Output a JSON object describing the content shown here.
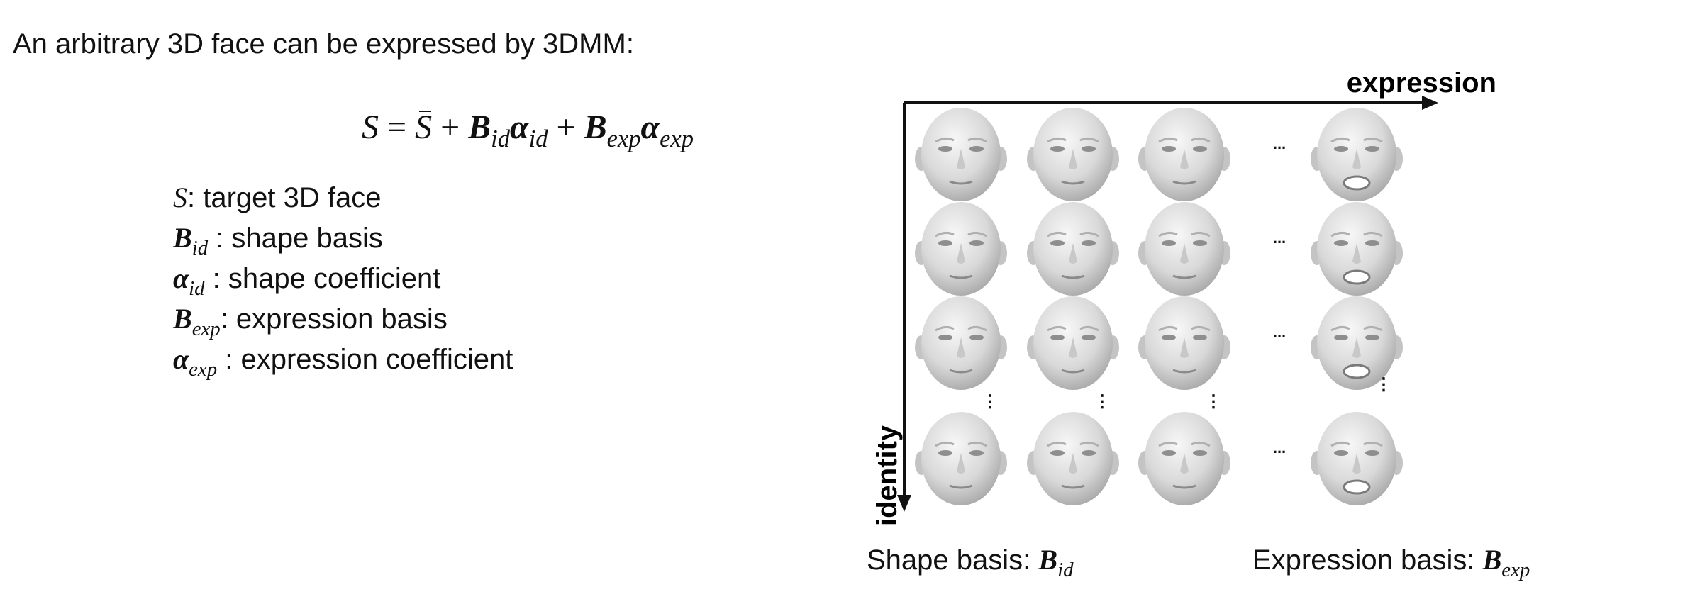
{
  "intro": "An arbitrary 3D face can be expressed by 3DMM:",
  "formula": {
    "lhs": "S",
    "eq": "=",
    "mean": "S",
    "plus": "+",
    "b_id": "B",
    "b_id_sub": "id",
    "a_id": "α",
    "a_id_sub": "id",
    "b_exp": "B",
    "b_exp_sub": "exp",
    "a_exp": "α",
    "a_exp_sub": "exp"
  },
  "legend": [
    {
      "symbol": "S",
      "sub": "",
      "bold": false,
      "desc": ": target 3D face"
    },
    {
      "symbol": "B",
      "sub": "id",
      "bold": true,
      "desc": " : shape basis"
    },
    {
      "symbol": "α",
      "sub": "id",
      "bold": true,
      "desc": " : shape coefficient"
    },
    {
      "symbol": "B",
      "sub": "exp",
      "bold": true,
      "desc": ": expression basis"
    },
    {
      "symbol": "α",
      "sub": "exp",
      "bold": true,
      "desc": " : expression coefficient"
    }
  ],
  "diagram": {
    "axis_x_label": "expression",
    "axis_y_label": "identity",
    "ellipsis_h": "...",
    "ellipsis_v": "⋮",
    "rows": 4,
    "cols": 4
  },
  "bottom_labels": {
    "shape": {
      "text": "Shape basis: ",
      "symbol": "B",
      "sub": "id"
    },
    "expression": {
      "text": "Expression basis: ",
      "symbol": "B",
      "sub": "exp"
    }
  },
  "colors": {
    "text": "#111111",
    "face_light": "#f2f2f2",
    "face_dark": "#9c9c9c",
    "background": "#ffffff"
  }
}
